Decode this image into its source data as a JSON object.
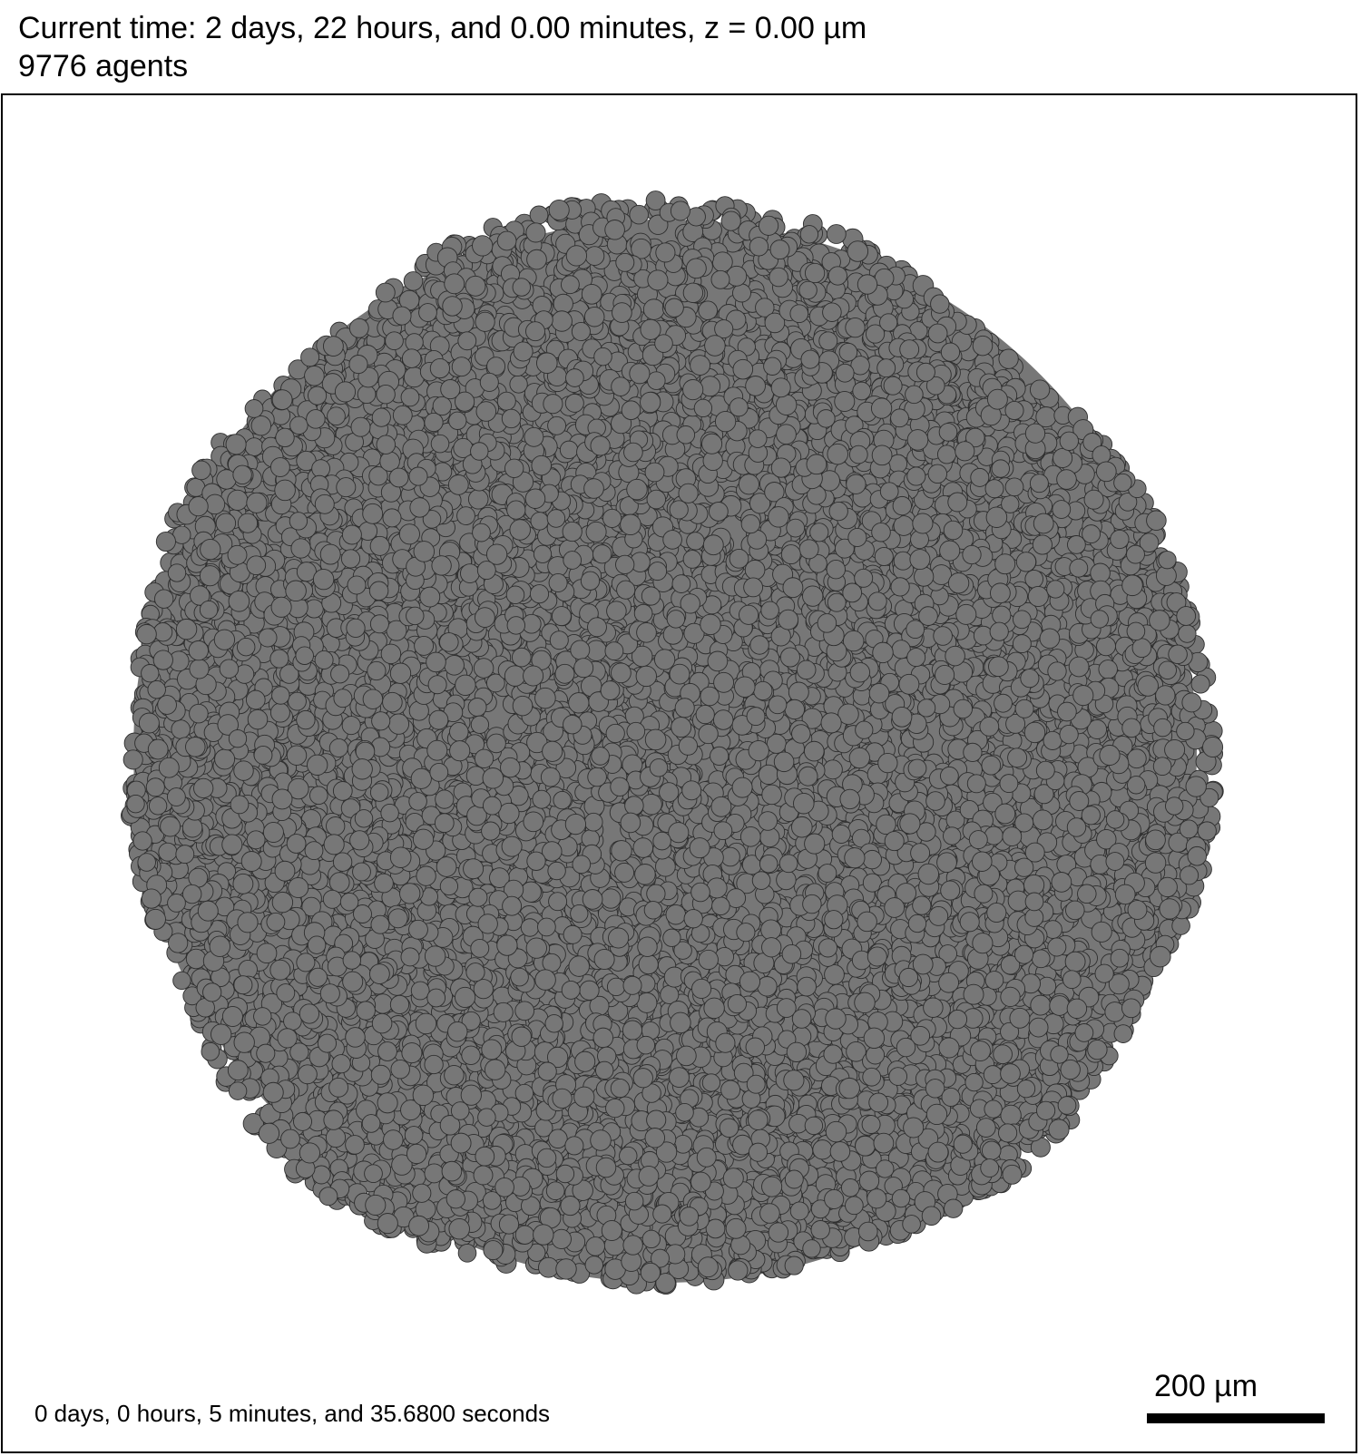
{
  "header": {
    "time_label": "Current time: 2 days, 22 hours, and 0.00 minutes, z = 0.00 µm",
    "agent_count_label": "9776 agents"
  },
  "footer": {
    "elapsed_label": "0 days, 0 hours, 5 minutes, and 35.6800 seconds",
    "scale_label": "200 µm"
  },
  "colors": {
    "agent_fill": "#777777",
    "agent_stroke": "#2e2e2e",
    "background": "#ffffff",
    "frame": "#000000"
  },
  "agent_count": 9776
}
